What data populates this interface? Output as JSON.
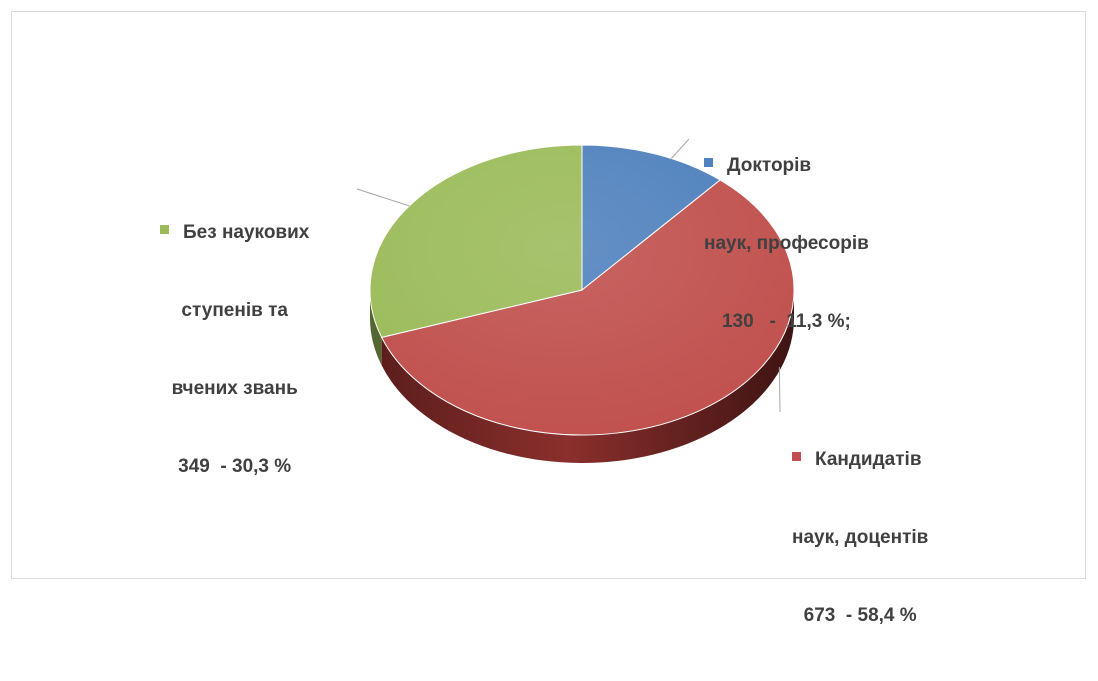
{
  "chart_data": {
    "type": "pie",
    "style": "3d",
    "title": "",
    "slices": [
      {
        "label_lines": [
          "Докторів",
          "наук, професорів",
          "130   -  11,3 %;"
        ],
        "count": 130,
        "percent": 11.3,
        "color": "#4f81bd"
      },
      {
        "label_lines": [
          "Кандидатів",
          "наук, доцентів",
          "673  - 58,4 %"
        ],
        "count": 673,
        "percent": 58.4,
        "color": "#c0504d"
      },
      {
        "label_lines": [
          "Без наукових",
          "ступенів та",
          "вчених звань",
          "349  - 30,3 %"
        ],
        "count": 349,
        "percent": 30.3,
        "color": "#9bbb59"
      }
    ]
  }
}
